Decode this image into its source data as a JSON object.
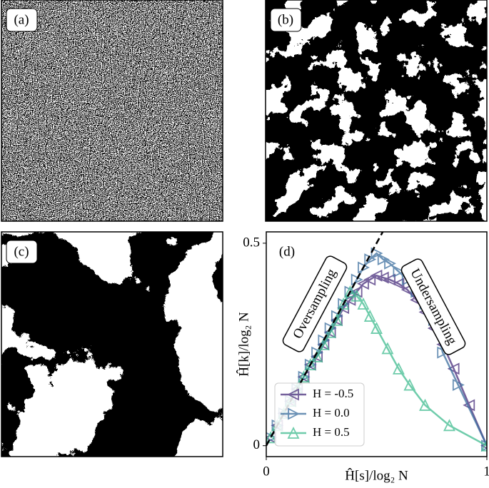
{
  "panels": {
    "a": "(a)",
    "b": "(b)",
    "c": "(c)"
  },
  "chart_data": {
    "type": "line",
    "panel_label": "(d)",
    "xlabel": "Ĥ[s]/log₂ N",
    "ylabel": "Ĥ[k]/log₂ N",
    "xlim": [
      0,
      1
    ],
    "ylim": [
      -0.027,
      0.528
    ],
    "xticks": [
      0,
      1
    ],
    "yticks": [
      0,
      0.5
    ],
    "annotations": [
      "Oversampling",
      "Undersampling"
    ],
    "legend": "lower left",
    "series": [
      {
        "name": "H = -0.5",
        "color": "#472d7b",
        "marker": "triangle-left",
        "x": [
          0.02,
          0.05,
          0.08,
          0.11,
          0.14,
          0.17,
          0.2,
          0.23,
          0.26,
          0.29,
          0.32,
          0.35,
          0.38,
          0.41,
          0.44,
          0.47,
          0.5,
          0.53,
          0.56,
          0.6,
          0.64,
          0.68,
          0.72,
          0.76,
          0.8,
          0.85,
          0.92,
          1.0
        ],
        "values": [
          0.02,
          0.05,
          0.08,
          0.11,
          0.14,
          0.17,
          0.2,
          0.22,
          0.25,
          0.28,
          0.31,
          0.34,
          0.36,
          0.38,
          0.4,
          0.41,
          0.42,
          0.415,
          0.41,
          0.4,
          0.385,
          0.36,
          0.33,
          0.29,
          0.25,
          0.19,
          0.1,
          0.0
        ]
      },
      {
        "name": "H = 0.0",
        "color": "#3b6e9e",
        "marker": "triangle-right",
        "x": [
          0.02,
          0.05,
          0.08,
          0.11,
          0.14,
          0.17,
          0.2,
          0.23,
          0.26,
          0.29,
          0.32,
          0.35,
          0.38,
          0.41,
          0.44,
          0.47,
          0.5,
          0.53,
          0.56,
          0.6,
          0.64,
          0.68,
          0.72,
          0.76,
          0.8,
          0.87,
          1.0
        ],
        "values": [
          0.02,
          0.05,
          0.08,
          0.11,
          0.14,
          0.17,
          0.2,
          0.23,
          0.26,
          0.29,
          0.32,
          0.35,
          0.38,
          0.41,
          0.44,
          0.46,
          0.475,
          0.46,
          0.45,
          0.43,
          0.41,
          0.38,
          0.35,
          0.31,
          0.23,
          0.15,
          0.0
        ]
      },
      {
        "name": "H = 0.5",
        "color": "#3fbc8f",
        "marker": "triangle-up",
        "x": [
          0.02,
          0.05,
          0.08,
          0.11,
          0.14,
          0.17,
          0.2,
          0.23,
          0.26,
          0.29,
          0.32,
          0.35,
          0.38,
          0.41,
          0.44,
          0.47,
          0.5,
          0.55,
          0.6,
          0.65,
          0.72,
          0.83,
          1.0
        ],
        "values": [
          0.02,
          0.05,
          0.08,
          0.11,
          0.14,
          0.17,
          0.2,
          0.22,
          0.25,
          0.28,
          0.31,
          0.35,
          0.38,
          0.37,
          0.35,
          0.32,
          0.29,
          0.24,
          0.19,
          0.15,
          0.1,
          0.05,
          0.0
        ]
      }
    ]
  }
}
